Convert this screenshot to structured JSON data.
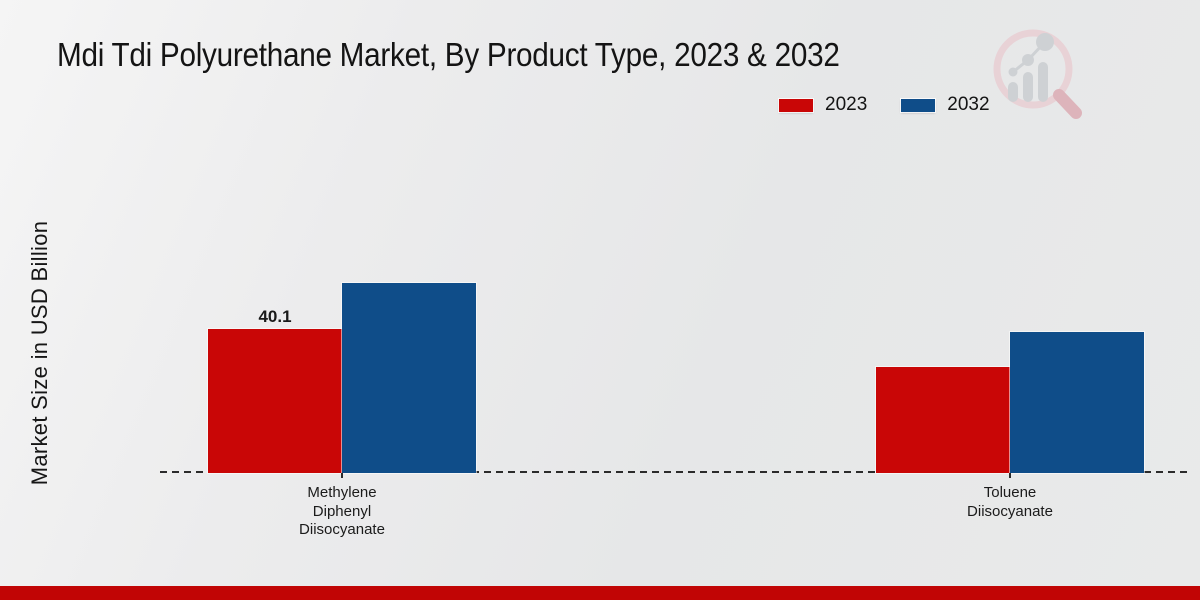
{
  "page": {
    "title": "Mdi Tdi Polyurethane Market, By Product Type, 2023 & 2032",
    "y_axis_label": "Market Size in USD Billion"
  },
  "legend": {
    "position": "top-right",
    "items": [
      {
        "label": "2023",
        "color": "#c90606"
      },
      {
        "label": "2032",
        "color": "#0f4d89"
      }
    ]
  },
  "chart_data": {
    "type": "bar",
    "title": "Mdi Tdi Polyurethane Market, By Product Type, 2023 & 2032",
    "xlabel": "",
    "ylabel": "Market Size in USD Billion",
    "categories": [
      "Methylene Diphenyl Diisocyanate",
      "Toluene Diisocyanate"
    ],
    "category_label_lines": [
      [
        "Methylene",
        "Diphenyl",
        "Diisocyanate"
      ],
      [
        "Toluene",
        "Diisocyanate"
      ]
    ],
    "series": [
      {
        "name": "2023",
        "color": "#c90606",
        "values": [
          40.1,
          29.5
        ],
        "value_labels": [
          "40.1",
          ""
        ]
      },
      {
        "name": "2032",
        "color": "#0f4d89",
        "values": [
          52.9,
          39.3
        ],
        "value_labels": [
          "",
          ""
        ]
      }
    ],
    "baseline_value": 0,
    "axes": {
      "y_ticks_visible": false,
      "gridlines": false,
      "baseline_style": "dashed",
      "category_tick_marks": true
    }
  },
  "branding": {
    "logo_icon": "magnifier-bar-chart-logo",
    "accent_bar_color": "#c10505"
  }
}
